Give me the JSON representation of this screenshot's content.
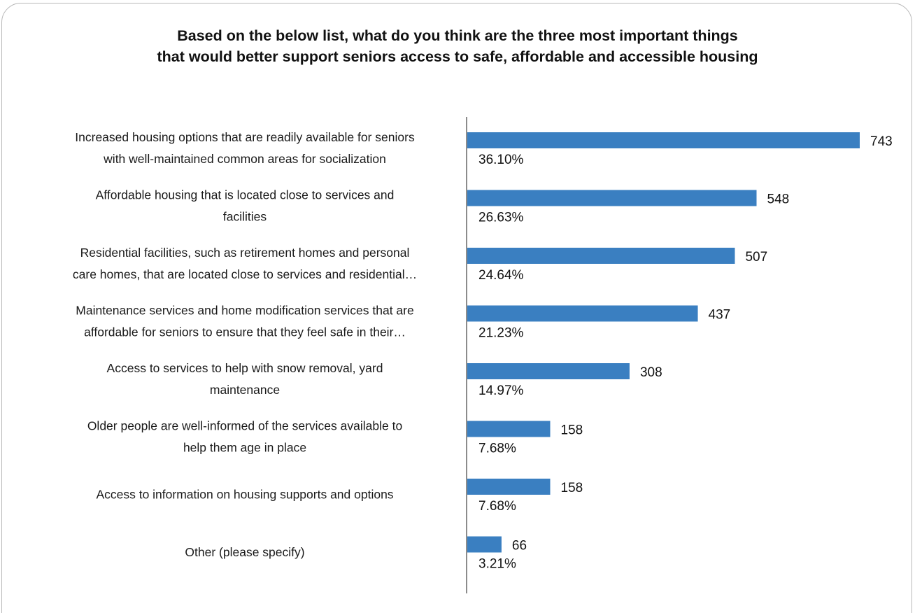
{
  "chart_data": {
    "type": "bar",
    "orientation": "horizontal",
    "title": [
      "Based on the below list, what do you think are the three most important things",
      "that would better support seniors access to safe, affordable and accessible housing"
    ],
    "categories": [
      [
        "Increased housing options that are readily available for seniors",
        "with well-maintained common areas for socialization"
      ],
      [
        "Affordable housing that is located close to services and",
        "facilities"
      ],
      [
        "Residential facilities, such as retirement homes and personal",
        "care homes, that are located close to services and residential…"
      ],
      [
        "Maintenance services and home modification services that are",
        "affordable for seniors to ensure that they feel safe in their…"
      ],
      [
        "Access to services to help with snow removal, yard",
        "maintenance"
      ],
      [
        "Older people are well-informed of the services available to",
        "help them age in place"
      ],
      [
        "Access to information on housing supports and options"
      ],
      [
        "Other (please specify)"
      ]
    ],
    "values": [
      743,
      548,
      507,
      437,
      308,
      158,
      158,
      66
    ],
    "percent_labels": [
      "36.10%",
      "26.63%",
      "24.64%",
      "21.23%",
      "14.97%",
      "7.68%",
      "7.68%",
      "3.21%"
    ],
    "xlim": [
      0,
      743
    ],
    "grid": false,
    "legend": "none",
    "colors": {
      "bar": "#3a7fc1",
      "axis": "#8c8c8c"
    }
  }
}
